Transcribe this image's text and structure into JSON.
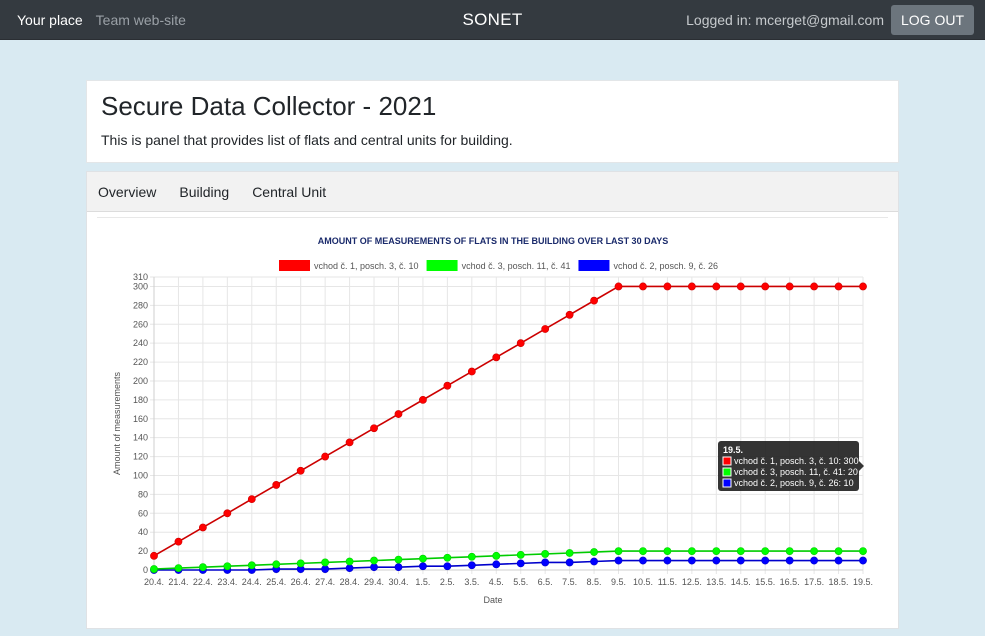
{
  "navbar": {
    "your_place": "Your place",
    "team_site": "Team web-site",
    "brand": "SONET",
    "logged_in": "Logged in: mcerget@gmail.com",
    "logout": "LOG OUT"
  },
  "header": {
    "title": "Secure Data Collector - 2021",
    "subtitle": "This is panel that provides list of flats and central units for building."
  },
  "tabs": [
    "Overview",
    "Building",
    "Central Unit"
  ],
  "chart_data": {
    "type": "line",
    "title": "AMOUNT OF MEASUREMENTS OF FLATS IN THE BUILDING OVER LAST 30 DAYS",
    "xlabel": "Date",
    "ylabel": "Amount of measurements",
    "ylim": [
      0,
      310
    ],
    "yticks": [
      0,
      20,
      40,
      60,
      80,
      100,
      120,
      140,
      160,
      180,
      200,
      220,
      240,
      260,
      280,
      300,
      310
    ],
    "grid": true,
    "legend_position": "top",
    "categories": [
      "20.4.",
      "21.4.",
      "22.4.",
      "23.4.",
      "24.4.",
      "25.4.",
      "26.4.",
      "27.4.",
      "28.4.",
      "29.4.",
      "30.4.",
      "1.5.",
      "2.5.",
      "3.5.",
      "4.5.",
      "5.5.",
      "6.5.",
      "7.5.",
      "8.5.",
      "9.5.",
      "10.5.",
      "11.5.",
      "12.5.",
      "13.5.",
      "14.5.",
      "15.5.",
      "16.5.",
      "17.5.",
      "18.5.",
      "19.5."
    ],
    "series": [
      {
        "name": "vchod č. 1, posch. 3, č. 10",
        "color": "#ff0000",
        "line_color": "#cc0000",
        "values": [
          15,
          30,
          45,
          60,
          75,
          90,
          105,
          120,
          135,
          150,
          165,
          180,
          195,
          210,
          225,
          240,
          255,
          270,
          285,
          300,
          300,
          300,
          300,
          300,
          300,
          300,
          300,
          300,
          300,
          300
        ]
      },
      {
        "name": "vchod č. 3, posch. 11, č. 41",
        "color": "#00ff00",
        "line_color": "#00cc00",
        "values": [
          1,
          2,
          3,
          4,
          5,
          6,
          7,
          8,
          9,
          10,
          11,
          12,
          13,
          14,
          15,
          16,
          17,
          18,
          19,
          20,
          20,
          20,
          20,
          20,
          20,
          20,
          20,
          20,
          20,
          20
        ]
      },
      {
        "name": "vchod č. 2, posch. 9, č. 26",
        "color": "#0000ff",
        "line_color": "#0000cc",
        "values": [
          0,
          0,
          0,
          0,
          0,
          1,
          1,
          1,
          2,
          3,
          3,
          4,
          4,
          5,
          6,
          7,
          8,
          8,
          9,
          10,
          10,
          10,
          10,
          10,
          10,
          10,
          10,
          10,
          10,
          10
        ]
      }
    ],
    "tooltip": {
      "title": "19.5.",
      "lines": [
        "vchod č. 1, posch. 3, č. 10: 300",
        "vchod č. 3, posch. 11, č. 41: 20",
        "vchod č. 2, posch. 9, č. 26: 10"
      ]
    }
  }
}
